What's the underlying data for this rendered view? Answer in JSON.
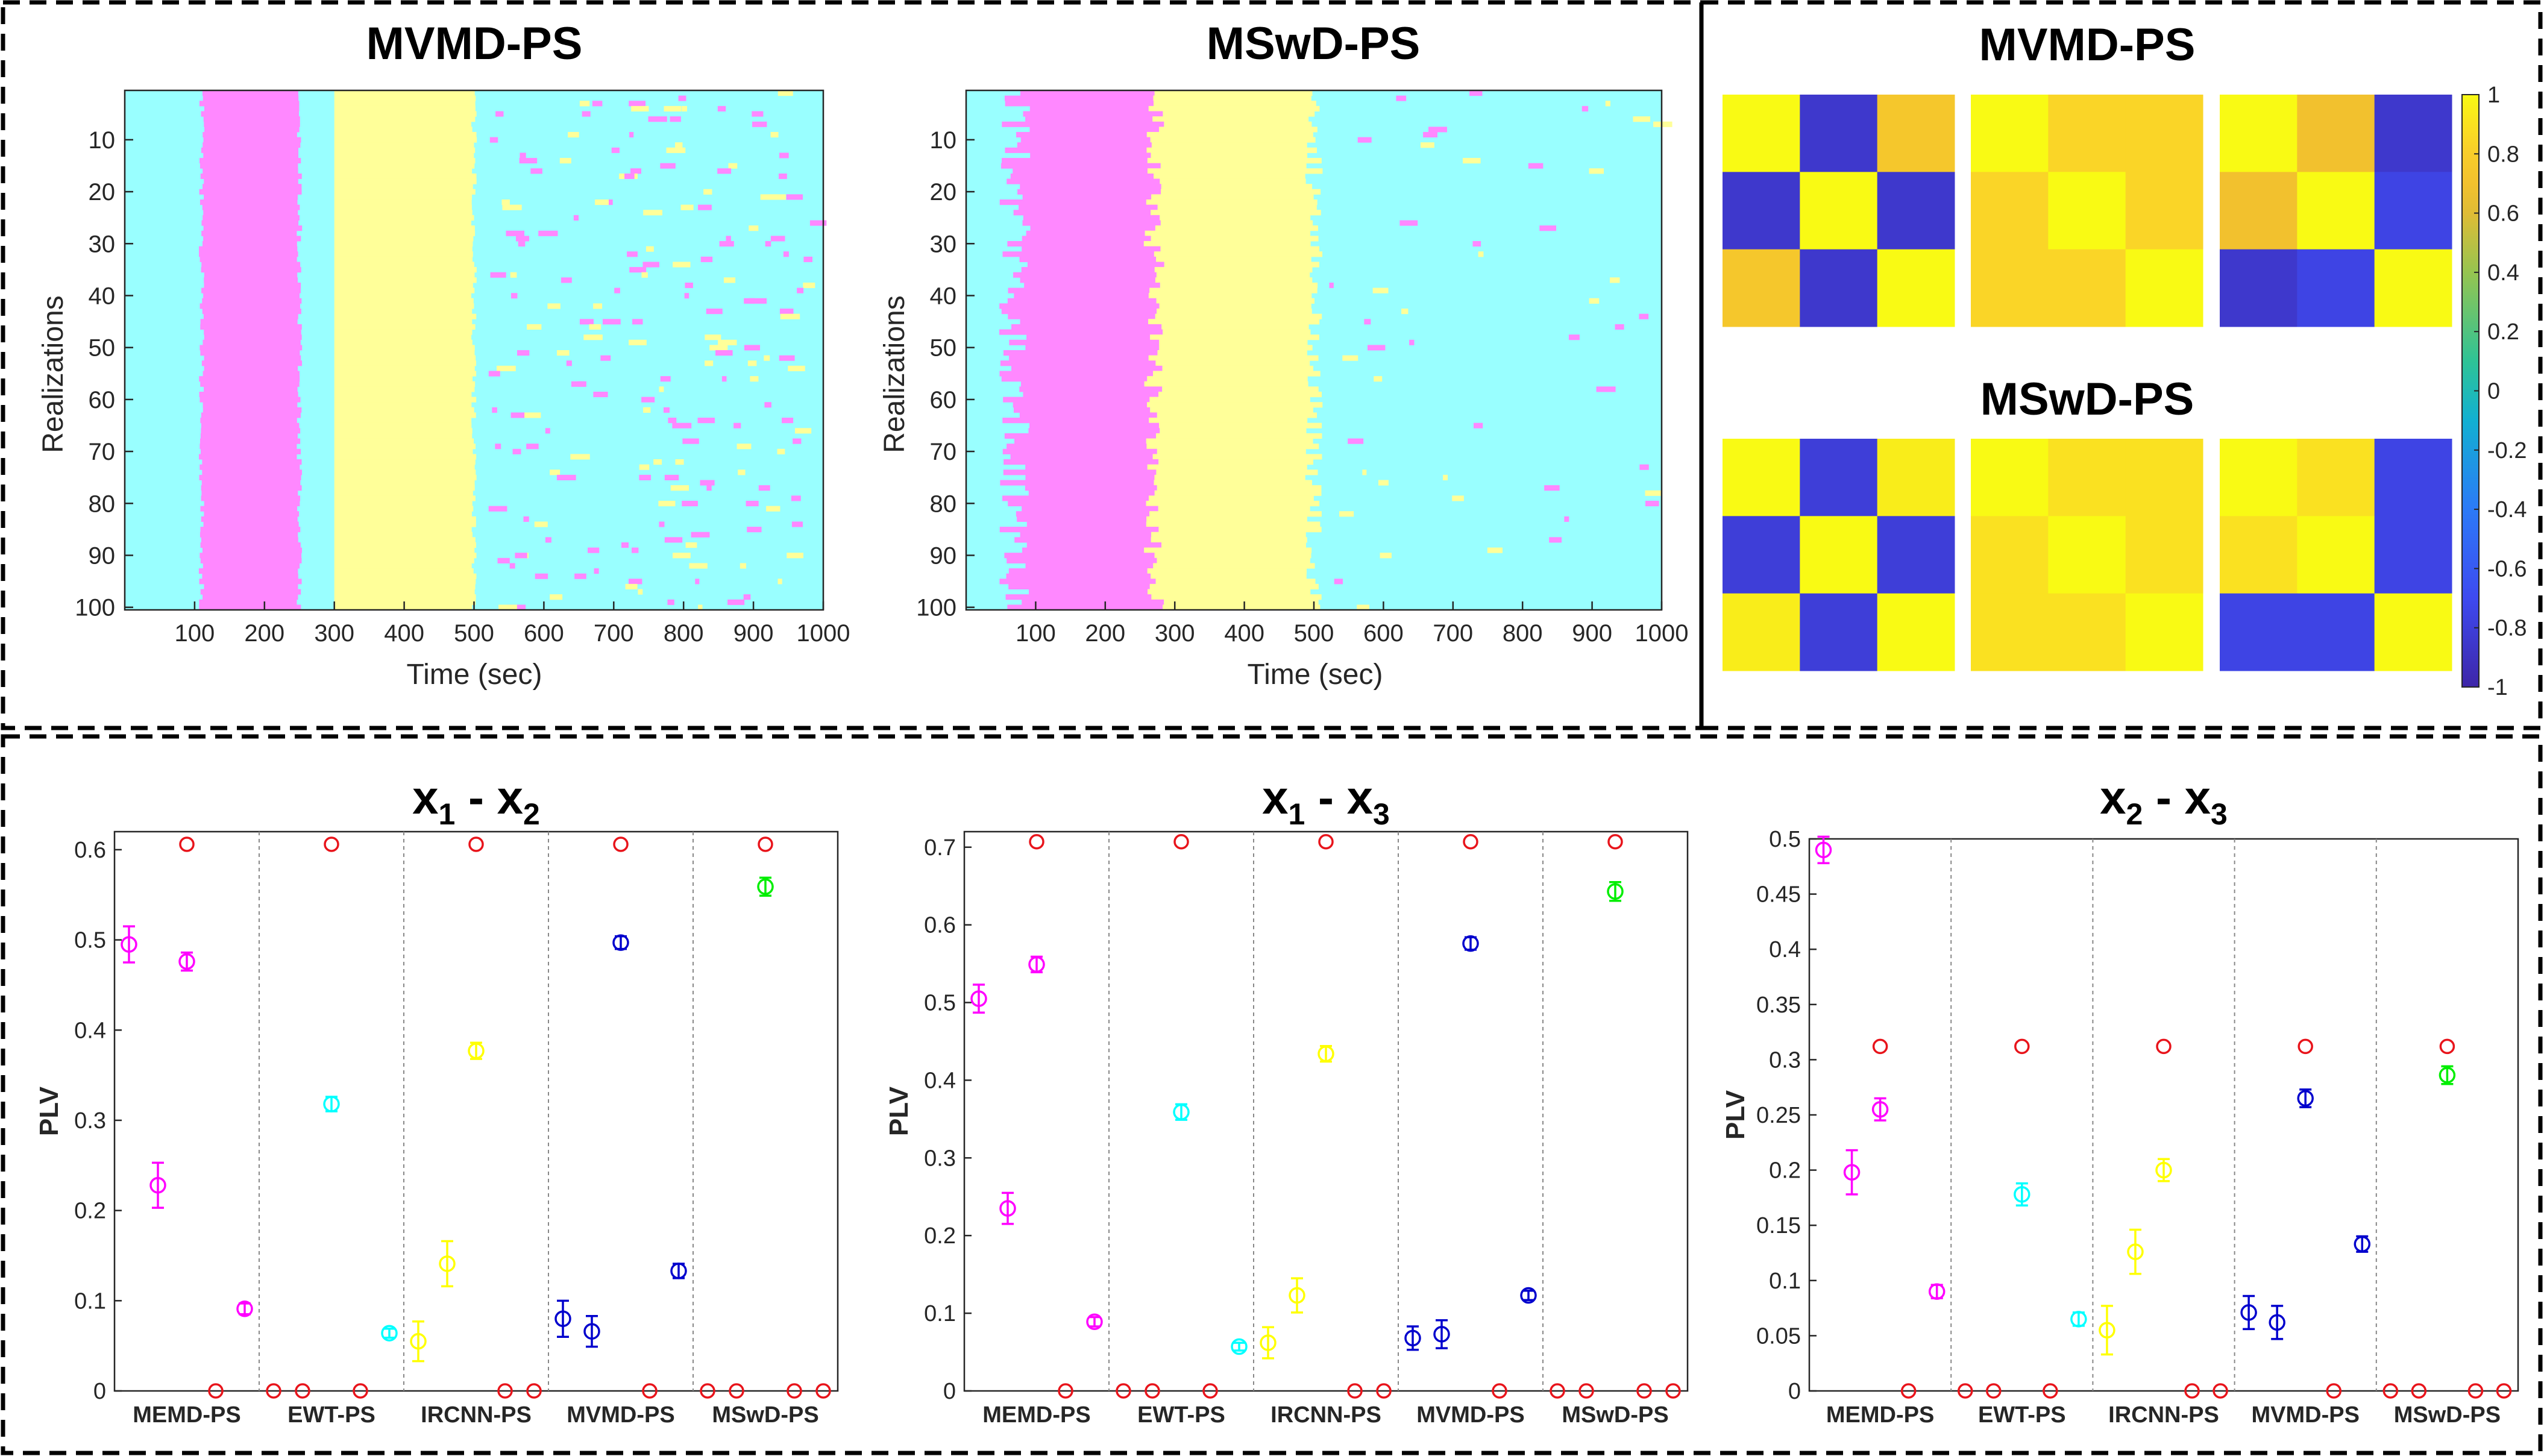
{
  "titles": {
    "raster_left": "MVMD-PS",
    "raster_right": "MSwD-PS",
    "matrix_top": "MVMD-PS",
    "matrix_bottom": "MSwD-PS"
  },
  "raster_axes": {
    "xlabel": "Time (sec)",
    "ylabel": "Realizations",
    "xticks": [
      "100",
      "200",
      "300",
      "400",
      "500",
      "600",
      "700",
      "800",
      "900",
      "1000"
    ],
    "yticks": [
      "10",
      "20",
      "30",
      "40",
      "50",
      "60",
      "70",
      "80",
      "90",
      "100"
    ]
  },
  "colors": {
    "cyan": "#99FFFF",
    "magenta": "#FF88FF",
    "yellow": "#FFFF99",
    "red": "#E8141B",
    "frame": "#000000"
  },
  "colorbar": {
    "ticks": [
      "1",
      "0.8",
      "0.6",
      "0.4",
      "0.2",
      "0",
      "-0.2",
      "-0.4",
      "-0.6",
      "-0.8",
      "-1"
    ]
  },
  "plv": {
    "ylabel": "PLV",
    "methods": [
      "MEMD-PS",
      "EWT-PS",
      "IRCNN-PS",
      "MVMD-PS",
      "MSwD-PS"
    ]
  },
  "chart_data": [
    {
      "type": "heatmap",
      "title": "MVMD-PS",
      "xlabel": "Time (sec)",
      "ylabel": "Realizations",
      "xlim": [
        0,
        1000
      ],
      "ylim": [
        1,
        100
      ],
      "description_values": {
        "x_segments_sec": [
          [
            0,
            110,
            "cyan"
          ],
          [
            110,
            250,
            "magenta"
          ],
          [
            250,
            300,
            "cyan"
          ],
          [
            300,
            500,
            "yellow"
          ],
          [
            500,
            1000,
            "cyan"
          ]
        ]
      }
    },
    {
      "type": "heatmap",
      "title": "MSwD-PS",
      "xlabel": "Time (sec)",
      "ylabel": "Realizations",
      "xlim": [
        0,
        1000
      ],
      "ylim": [
        1,
        100
      ],
      "description_values": {
        "x_segments_sec": [
          [
            0,
            70,
            "cyan"
          ],
          [
            70,
            270,
            "magenta"
          ],
          [
            270,
            500,
            "yellow"
          ],
          [
            500,
            1000,
            "cyan"
          ]
        ]
      }
    },
    {
      "type": "heatmap",
      "title": "MVMD-PS",
      "clim": [
        -1,
        1
      ],
      "matrices": [
        [
          [
            1,
            -0.85,
            0.75
          ],
          [
            -0.85,
            1,
            -0.85
          ],
          [
            0.75,
            -0.85,
            1
          ]
        ],
        [
          [
            1,
            0.85,
            0.85
          ],
          [
            0.85,
            1,
            0.85
          ],
          [
            0.85,
            0.85,
            1
          ]
        ],
        [
          [
            1,
            0.7,
            -0.85
          ],
          [
            0.7,
            1,
            -0.75
          ],
          [
            -0.85,
            -0.75,
            1
          ]
        ]
      ]
    },
    {
      "type": "heatmap",
      "title": "MSwD-PS",
      "clim": [
        -1,
        1
      ],
      "matrices": [
        [
          [
            1,
            -0.8,
            0.95
          ],
          [
            -0.8,
            1,
            -0.8
          ],
          [
            0.95,
            -0.8,
            1
          ]
        ],
        [
          [
            1,
            0.9,
            0.9
          ],
          [
            0.9,
            1,
            0.9
          ],
          [
            0.9,
            0.9,
            1
          ]
        ],
        [
          [
            1,
            0.9,
            -0.75
          ],
          [
            0.9,
            1,
            -0.75
          ],
          [
            -0.75,
            -0.75,
            1
          ]
        ]
      ]
    },
    {
      "type": "scatter",
      "title": "x1 - x2",
      "ylabel": "PLV",
      "ylim": [
        0,
        0.62
      ],
      "yticks": [
        "0",
        "0.1",
        "0.2",
        "0.3",
        "0.4",
        "0.5",
        "0.6"
      ],
      "categories": [
        "MEMD-PS",
        "EWT-PS",
        "IRCNN-PS",
        "MVMD-PS",
        "MSwD-PS"
      ],
      "reference": 0.606,
      "series": [
        {
          "color": "#FF00FF",
          "values": [
            0.495,
            0.228,
            0.476,
            0,
            0.091
          ],
          "err": [
            0.02,
            0.025,
            0.01,
            0,
            0.006
          ]
        },
        {
          "color": "#00FFFF",
          "values": [
            0,
            0,
            0.318,
            0,
            0.064
          ],
          "err": [
            0,
            0,
            0.008,
            0,
            0.005
          ]
        },
        {
          "color": "#FFFF00",
          "values": [
            0.055,
            0.141,
            0.377,
            0,
            0
          ],
          "err": [
            0.022,
            0.025,
            0.009,
            0,
            0
          ]
        },
        {
          "color": "#0000CD",
          "values": [
            0.08,
            0.066,
            0.497,
            0,
            0.133
          ],
          "err": [
            0.02,
            0.017,
            0.007,
            0,
            0.008
          ]
        },
        {
          "color": "#00EE00",
          "values": [
            0,
            0,
            0.559,
            0,
            0
          ],
          "err": [
            0,
            0,
            0.01,
            0,
            0
          ]
        }
      ]
    },
    {
      "type": "scatter",
      "title": "x1 - x3",
      "ylabel": "PLV",
      "ylim": [
        0,
        0.72
      ],
      "yticks": [
        "0",
        "0.1",
        "0.2",
        "0.3",
        "0.4",
        "0.5",
        "0.6",
        "0.7"
      ],
      "categories": [
        "MEMD-PS",
        "EWT-PS",
        "IRCNN-PS",
        "MVMD-PS",
        "MSwD-PS"
      ],
      "reference": 0.707,
      "series": [
        {
          "color": "#FF00FF",
          "values": [
            0.505,
            0.235,
            0.549,
            0,
            0.089
          ],
          "err": [
            0.018,
            0.02,
            0.01,
            0,
            0.006
          ]
        },
        {
          "color": "#00FFFF",
          "values": [
            0,
            0,
            0.359,
            0,
            0.057
          ],
          "err": [
            0,
            0,
            0.01,
            0,
            0.005
          ]
        },
        {
          "color": "#FFFF00",
          "values": [
            0.062,
            0.123,
            0.434,
            0,
            0
          ],
          "err": [
            0.02,
            0.022,
            0.01,
            0,
            0
          ]
        },
        {
          "color": "#0000CD",
          "values": [
            0.068,
            0.073,
            0.576,
            0,
            0.123
          ],
          "err": [
            0.015,
            0.018,
            0.008,
            0,
            0.006
          ]
        },
        {
          "color": "#00EE00",
          "values": [
            0,
            0,
            0.643,
            0,
            0
          ],
          "err": [
            0,
            0,
            0.012,
            0,
            0
          ]
        }
      ]
    },
    {
      "type": "scatter",
      "title": "x2 - x3",
      "ylabel": "PLV",
      "ylim": [
        0,
        0.5
      ],
      "yticks": [
        "0",
        "0.05",
        "0.1",
        "0.15",
        "0.2",
        "0.25",
        "0.3",
        "0.35",
        "0.4",
        "0.45",
        "0.5"
      ],
      "categories": [
        "MEMD-PS",
        "EWT-PS",
        "IRCNN-PS",
        "MVMD-PS",
        "MSwD-PS"
      ],
      "reference": 0.312,
      "series": [
        {
          "color": "#FF00FF",
          "values": [
            0.49,
            0.198,
            0.255,
            0,
            0.09
          ],
          "err": [
            0.012,
            0.02,
            0.01,
            0,
            0.006
          ]
        },
        {
          "color": "#00FFFF",
          "values": [
            0,
            0,
            0.178,
            0,
            0.065
          ],
          "err": [
            0,
            0,
            0.01,
            0,
            0.006
          ]
        },
        {
          "color": "#FFFF00",
          "values": [
            0.055,
            0.126,
            0.2,
            0,
            0
          ],
          "err": [
            0.022,
            0.02,
            0.01,
            0,
            0
          ]
        },
        {
          "color": "#0000CD",
          "values": [
            0.071,
            0.062,
            0.265,
            0,
            0.133
          ],
          "err": [
            0.015,
            0.015,
            0.008,
            0,
            0.007
          ]
        },
        {
          "color": "#00EE00",
          "values": [
            0,
            0,
            0.286,
            0,
            0
          ],
          "err": [
            0,
            0,
            0.008,
            0,
            0
          ]
        }
      ]
    }
  ]
}
